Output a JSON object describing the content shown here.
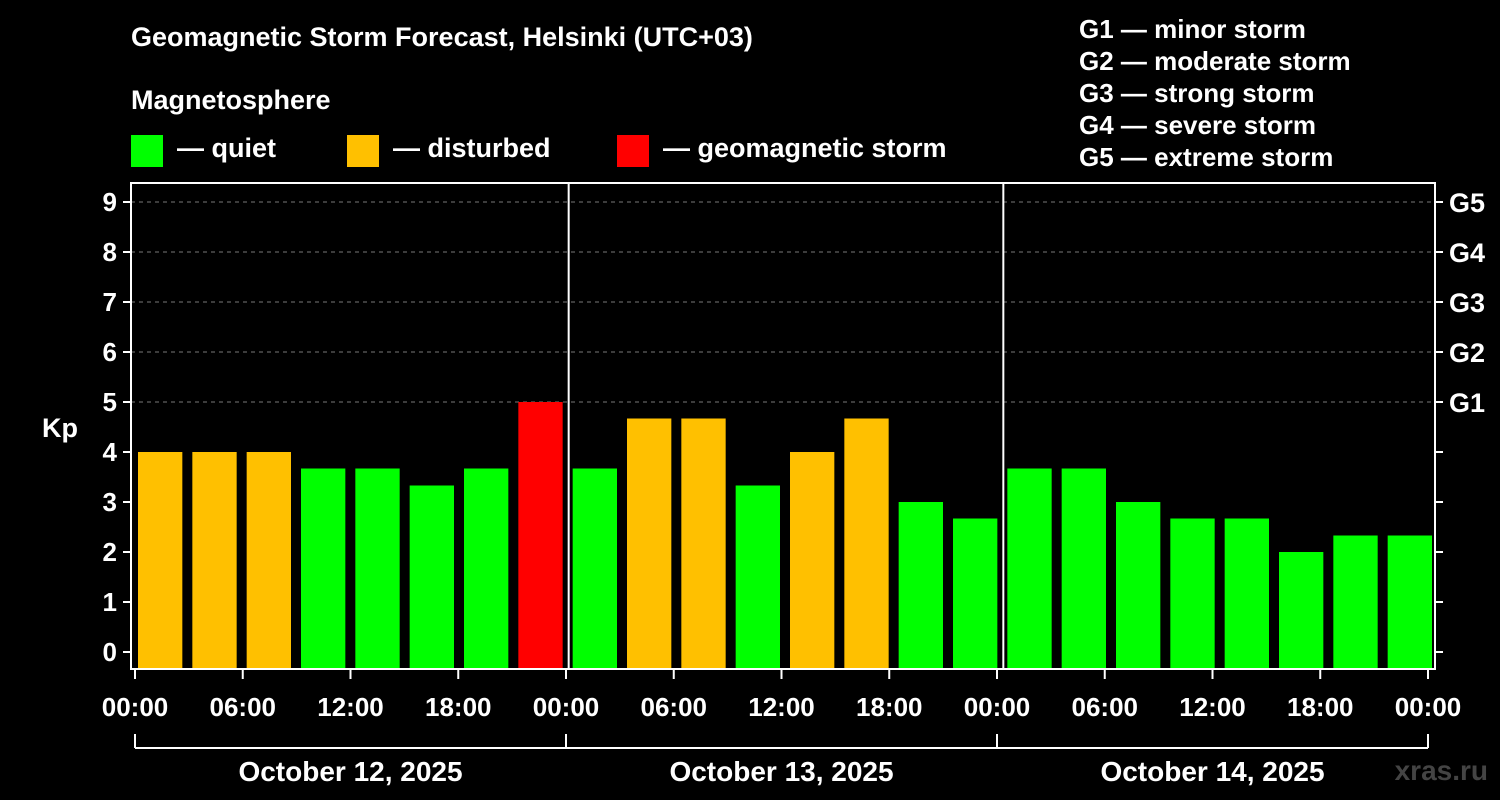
{
  "title": "Geomagnetic Storm Forecast, Helsinki (UTC+03)",
  "magnetosphere": {
    "title": "Magnetosphere",
    "legend": [
      {
        "label": "— quiet",
        "color": "#00ff00"
      },
      {
        "label": "— disturbed",
        "color": "#ffc000"
      },
      {
        "label": "— geomagnetic storm",
        "color": "#ff0000"
      }
    ]
  },
  "g_scale": [
    "G1 — minor storm",
    "G2 — moderate storm",
    "G3 — strong storm",
    "G4 — severe storm",
    "G5 — extreme storm"
  ],
  "watermark": "xras.ru",
  "chart_data": {
    "type": "bar",
    "title": "Geomagnetic Storm Forecast, Helsinki (UTC+03)",
    "ylabel": "Kp",
    "xlabel": "",
    "ylim": [
      0,
      9
    ],
    "yticks": [
      "0",
      "1",
      "2",
      "3",
      "4",
      "5",
      "6",
      "7",
      "8",
      "9"
    ],
    "right_axis_labels": [
      {
        "kp": 5,
        "label": "G1"
      },
      {
        "kp": 6,
        "label": "G2"
      },
      {
        "kp": 7,
        "label": "G3"
      },
      {
        "kp": 8,
        "label": "G4"
      },
      {
        "kp": 9,
        "label": "G5"
      }
    ],
    "hour_ticks": [
      "00:00",
      "06:00",
      "12:00",
      "18:00",
      "00:00",
      "06:00",
      "12:00",
      "18:00",
      "00:00",
      "06:00",
      "12:00",
      "18:00",
      "00:00"
    ],
    "days": [
      "October 12, 2025",
      "October 13, 2025",
      "October 14, 2025"
    ],
    "interval_hours": 3,
    "values": [
      4.0,
      4.0,
      4.0,
      3.67,
      3.67,
      3.33,
      3.67,
      5.0,
      3.67,
      4.67,
      4.67,
      3.33,
      4.0,
      4.67,
      3.0,
      2.67,
      3.67,
      3.67,
      3.0,
      2.67,
      2.67,
      2.0,
      2.33,
      2.33
    ],
    "status": [
      "disturbed",
      "disturbed",
      "disturbed",
      "quiet",
      "quiet",
      "quiet",
      "quiet",
      "storm",
      "quiet",
      "disturbed",
      "disturbed",
      "quiet",
      "disturbed",
      "disturbed",
      "quiet",
      "quiet",
      "quiet",
      "quiet",
      "quiet",
      "quiet",
      "quiet",
      "quiet",
      "quiet",
      "quiet"
    ],
    "status_colors": {
      "quiet": "#00ff00",
      "disturbed": "#ffc000",
      "storm": "#ff0000"
    },
    "grid": true
  }
}
